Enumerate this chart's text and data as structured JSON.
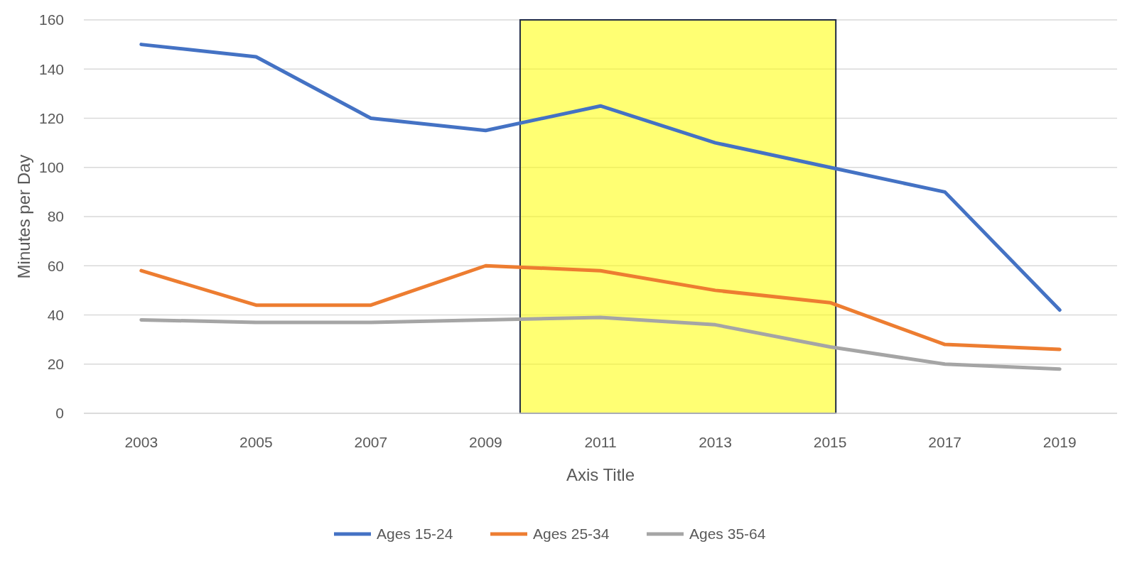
{
  "chart_data": {
    "type": "line",
    "xlabel": "Axis Title",
    "ylabel": "Minutes per Day",
    "x": [
      2003,
      2005,
      2007,
      2009,
      2011,
      2013,
      2015,
      2017,
      2019
    ],
    "xlim": [
      2002,
      2020
    ],
    "xticks": [
      2003,
      2005,
      2007,
      2009,
      2011,
      2013,
      2015,
      2017,
      2019
    ],
    "ylim": [
      0,
      160
    ],
    "yticks": [
      0,
      20,
      40,
      60,
      80,
      100,
      120,
      140,
      160
    ],
    "series": [
      {
        "name": "Ages 15-24",
        "color": "#4472c4",
        "values": [
          150,
          145,
          120,
          115,
          125,
          110,
          100,
          90,
          42
        ]
      },
      {
        "name": "Ages 25-34",
        "color": "#ed7d31",
        "values": [
          58,
          44,
          44,
          60,
          58,
          50,
          45,
          28,
          26
        ]
      },
      {
        "name": "Ages 35-64",
        "color": "#a5a5a5",
        "values": [
          38,
          37,
          37,
          38,
          39,
          36,
          27,
          20,
          18
        ]
      }
    ],
    "bands": [
      {
        "axis": "x",
        "from": 2009.6,
        "to": 2015.1,
        "color": "#ffff00"
      }
    ],
    "grid": "y",
    "legend": "bottom",
    "line_style": "solid",
    "marker": "none"
  }
}
